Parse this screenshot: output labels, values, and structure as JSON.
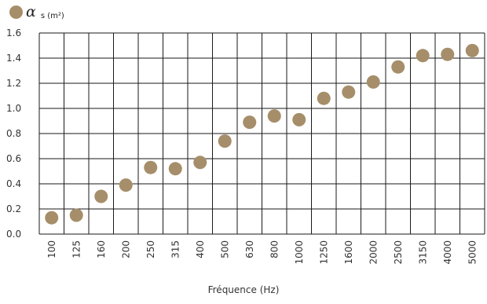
{
  "chart_data": {
    "type": "scatter",
    "title": "",
    "xlabel": "Fréquence (Hz)",
    "ylabel": "",
    "categories": [
      "100",
      "125",
      "160",
      "200",
      "250",
      "315",
      "400",
      "500",
      "630",
      "800",
      "1000",
      "1250",
      "1600",
      "2000",
      "2500",
      "3150",
      "4000",
      "5000"
    ],
    "series": [
      {
        "name": "αs (m²)",
        "values": [
          0.13,
          0.15,
          0.3,
          0.39,
          0.53,
          0.52,
          0.57,
          0.74,
          0.89,
          0.94,
          0.91,
          1.08,
          1.13,
          1.21,
          1.33,
          1.42,
          1.43,
          1.46
        ]
      }
    ],
    "yticks": [
      "0.0",
      "0.2",
      "0.4",
      "0.6",
      "0.8",
      "1.0",
      "1.2",
      "1.4",
      "1.6"
    ],
    "ylim": [
      0,
      1.6
    ],
    "grid": true,
    "legend": "top-left"
  },
  "legend": {
    "symbol": "α",
    "sub": "s (m²)"
  },
  "colors": {
    "marker": "#a68e6a",
    "grid": "#1a1a1a",
    "text": "#333333"
  }
}
